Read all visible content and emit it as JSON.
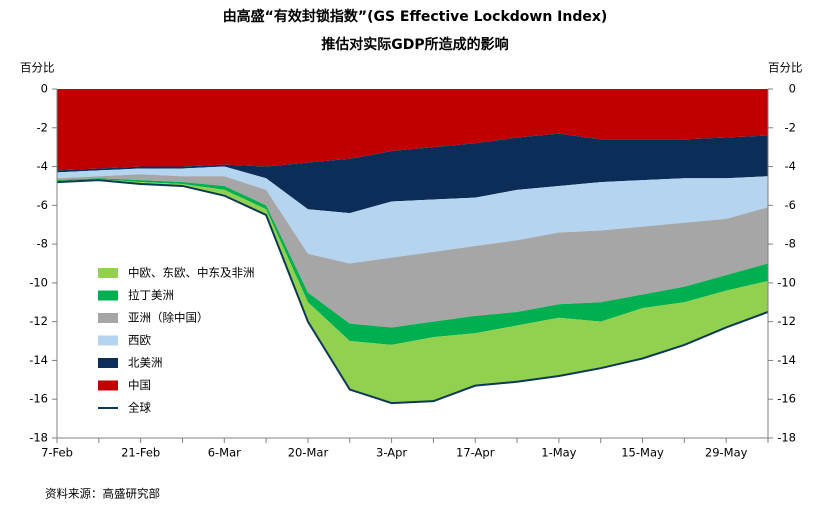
{
  "chart_data": {
    "type": "stacked-area",
    "title": "由高盛“有效封锁指数”(GS Effective Lockdown Index)",
    "subtitle": "推估对实际GDP所造成的影响",
    "ylabel": "百分比",
    "y2label": "百分比",
    "source": "资料来源：高盛研究部",
    "categories": [
      "7-Feb",
      null,
      "21-Feb",
      null,
      "6-Mar",
      null,
      "20-Mar",
      null,
      "3-Apr",
      null,
      "17-Apr",
      null,
      "1-May",
      null,
      "15-May",
      null,
      "29-May",
      null
    ],
    "series": [
      {
        "name": "中欧、东欧、中东及非洲",
        "color": "#92d050",
        "values": [
          -0.05,
          -0.05,
          -0.1,
          -0.1,
          -0.3,
          -0.3,
          -1.0,
          -2.5,
          -3.0,
          -3.3,
          -2.7,
          -2.9,
          -3.0,
          -2.4,
          -2.6,
          -2.2,
          -1.9,
          -1.6
        ]
      },
      {
        "name": "拉丁美洲",
        "color": "#00b050",
        "values": [
          -0.05,
          -0.05,
          -0.1,
          -0.1,
          -0.2,
          -0.2,
          -0.5,
          -0.9,
          -0.9,
          -0.8,
          -0.9,
          -0.7,
          -0.7,
          -1.0,
          -0.7,
          -0.8,
          -0.8,
          -0.9
        ]
      },
      {
        "name": "亚洲（除中国）",
        "color": "#a6a6a6",
        "values": [
          -0.1,
          -0.1,
          -0.3,
          -0.3,
          -0.5,
          -0.8,
          -2.0,
          -3.1,
          -3.6,
          -3.6,
          -3.6,
          -3.7,
          -3.7,
          -3.7,
          -3.5,
          -3.3,
          -2.9,
          -2.9
        ]
      },
      {
        "name": "西欧",
        "color": "#b4d4ef",
        "values": [
          -0.3,
          -0.3,
          -0.3,
          -0.4,
          -0.5,
          -0.6,
          -2.3,
          -2.6,
          -2.9,
          -2.7,
          -2.5,
          -2.6,
          -2.4,
          -2.5,
          -2.4,
          -2.3,
          -2.1,
          -1.6
        ]
      },
      {
        "name": "北美洲",
        "color": "#0b2d57",
        "values": [
          -0.1,
          -0.1,
          -0.1,
          -0.1,
          -0.1,
          -0.6,
          -2.4,
          -2.8,
          -2.6,
          -2.7,
          -2.8,
          -2.7,
          -2.7,
          -2.2,
          -2.1,
          -2.0,
          -2.1,
          -2.1
        ]
      },
      {
        "name": "中国",
        "color": "#c00000",
        "values": [
          -4.2,
          -4.1,
          -4.0,
          -4.0,
          -3.9,
          -4.0,
          -3.8,
          -3.6,
          -3.2,
          -3.0,
          -2.8,
          -2.5,
          -2.3,
          -2.6,
          -2.6,
          -2.6,
          -2.5,
          -2.4
        ]
      },
      {
        "name": "全球",
        "color": "#0e3a55",
        "type": "line",
        "values": [
          -4.8,
          -4.7,
          -4.9,
          -5.0,
          -5.5,
          -6.5,
          -12.0,
          -15.5,
          -16.2,
          -16.1,
          -15.3,
          -15.1,
          -14.8,
          -14.4,
          -13.9,
          -13.2,
          -12.3,
          -11.5
        ]
      }
    ],
    "ylim": [
      -18,
      0
    ],
    "yticks": [
      0,
      -2,
      -4,
      -6,
      -8,
      -10,
      -12,
      -14,
      -16,
      -18
    ],
    "y2lim": [
      -18,
      0
    ],
    "y2ticks": [
      0,
      -2,
      -4,
      -6,
      -8,
      -10,
      -12,
      -14,
      -16,
      -18
    ]
  }
}
